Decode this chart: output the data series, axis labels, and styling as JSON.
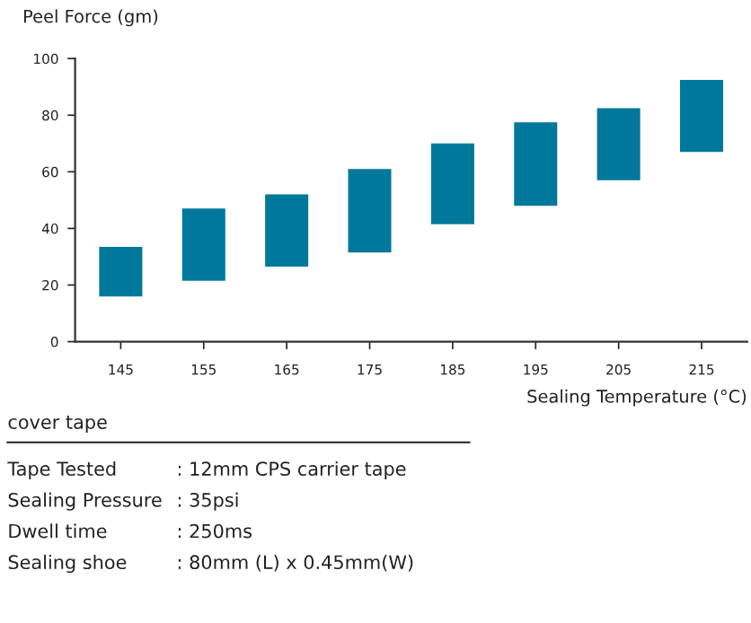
{
  "chart_data": {
    "type": "bar",
    "ylabel": "Peel Force (gm)",
    "xlabel": "Sealing Temperature (°C)",
    "categories": [
      "145",
      "155",
      "165",
      "175",
      "185",
      "195",
      "205",
      "215"
    ],
    "base": [
      16,
      21.5,
      26.5,
      31.5,
      41.5,
      48,
      57,
      67
    ],
    "values": [
      17.5,
      25.5,
      25.5,
      29.5,
      28.5,
      29.5,
      25.5,
      25.5
    ],
    "color": "#00789c",
    "ylim": [
      0,
      100
    ],
    "yticks": [
      0,
      20,
      40,
      60,
      80,
      100
    ],
    "grid": false,
    "legend": false,
    "annotations": [
      "cover tape",
      "Tape Tested",
      ": 12mm CPS carrier tape",
      "Sealing Pressure",
      ": 35psi",
      "Dwell time",
      ": 250ms",
      "Sealing shoe",
      ": 80mm (L) x 0.45mm(W)"
    ]
  }
}
